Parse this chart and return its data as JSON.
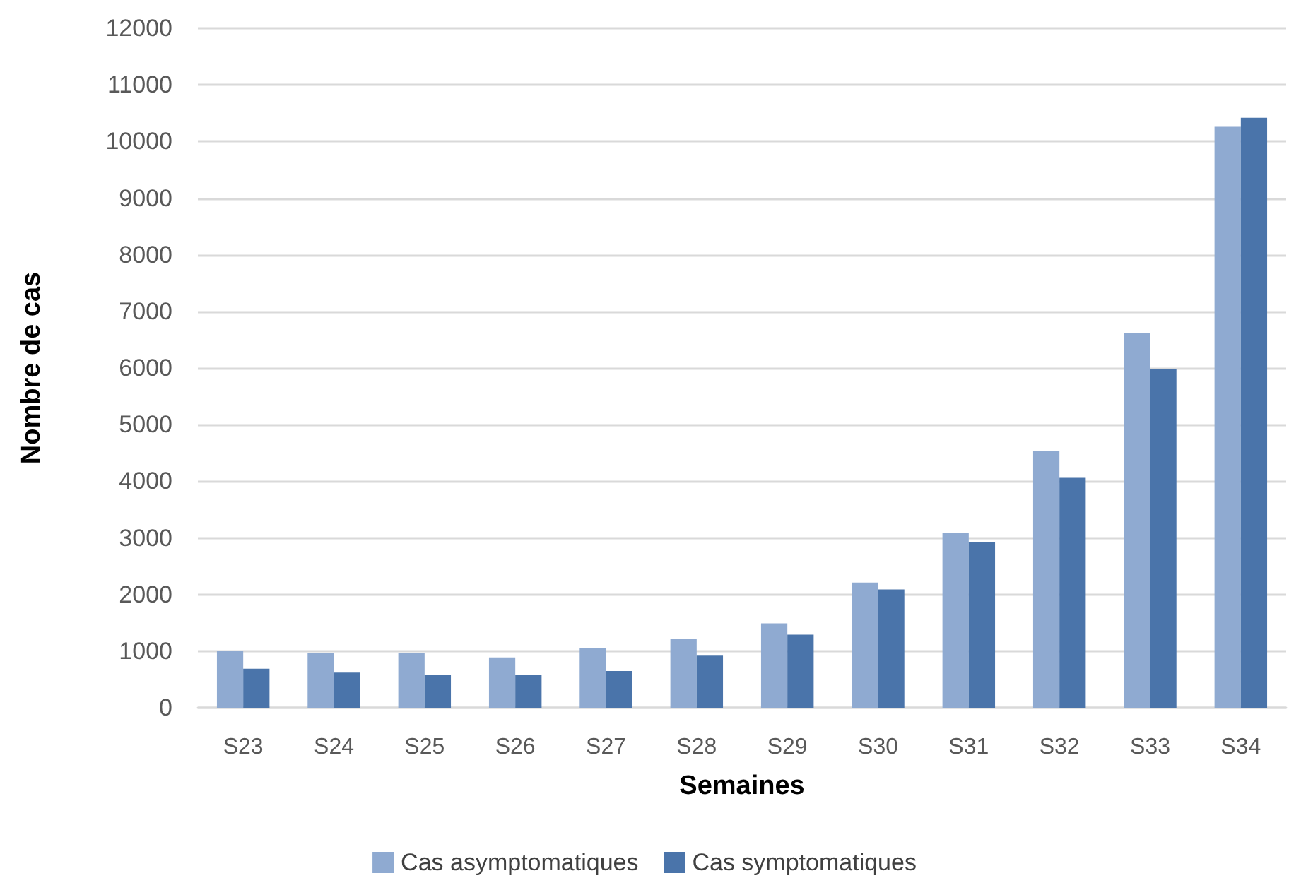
{
  "chart_data": {
    "type": "bar",
    "xlabel": "Semaines",
    "ylabel": "Nombre de cas",
    "categories": [
      "S23",
      "S24",
      "S25",
      "S26",
      "S27",
      "S28",
      "S29",
      "S30",
      "S31",
      "S32",
      "S33",
      "S34"
    ],
    "series": [
      {
        "name": "Cas asymptomatiques",
        "color": "#8faad1",
        "values": [
          1000,
          970,
          970,
          890,
          1050,
          1210,
          1490,
          2210,
          3090,
          4530,
          6620,
          10260
        ]
      },
      {
        "name": "Cas symptomatiques",
        "color": "#4a74aa",
        "values": [
          690,
          620,
          580,
          580,
          650,
          920,
          1290,
          2090,
          2930,
          4060,
          5980,
          10420
        ]
      }
    ],
    "ylim": [
      0,
      12000
    ],
    "yticks": [
      0,
      1000,
      2000,
      3000,
      4000,
      5000,
      6000,
      7000,
      8000,
      9000,
      10000,
      11000,
      12000
    ],
    "grid": "y",
    "legend": "bottom"
  }
}
